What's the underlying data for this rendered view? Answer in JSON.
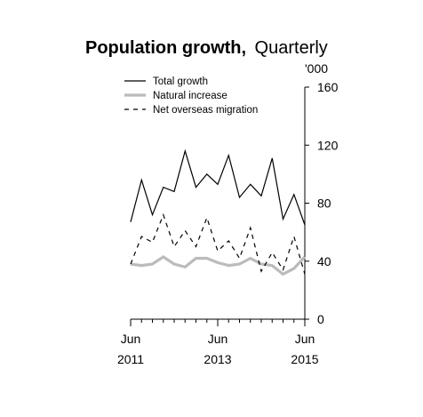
{
  "chart_data": {
    "type": "line",
    "title": "Population growth,",
    "subtitle": "Quarterly",
    "ylabel": "'000",
    "ylim": [
      0,
      160
    ],
    "yticks": [
      0,
      40,
      80,
      120,
      160
    ],
    "xticks": [
      {
        "month": "Jun",
        "year": "2011",
        "index": 0
      },
      {
        "month": "Jun",
        "year": "2013",
        "index": 8
      },
      {
        "month": "Jun",
        "year": "2015",
        "index": 16
      }
    ],
    "legend_position": "top-left",
    "grid": false,
    "x": [
      "Jun 2011",
      "Sep 2011",
      "Dec 2011",
      "Mar 2012",
      "Jun 2012",
      "Sep 2012",
      "Dec 2012",
      "Mar 2013",
      "Jun 2013",
      "Sep 2013",
      "Dec 2013",
      "Mar 2014",
      "Jun 2014",
      "Sep 2014",
      "Dec 2014",
      "Mar 2015",
      "Jun 2015"
    ],
    "series": [
      {
        "name": "Total growth",
        "style": "solid",
        "color": "#000000",
        "values": [
          67,
          96,
          72,
          91,
          88,
          116,
          91,
          100,
          93,
          113,
          84,
          93,
          85,
          111,
          69,
          86,
          65
        ]
      },
      {
        "name": "Natural increase",
        "style": "solid-thick",
        "color": "#bbbbbb",
        "values": [
          38,
          37,
          38,
          43,
          38,
          36,
          42,
          42,
          39,
          37,
          38,
          42,
          38,
          37,
          31,
          35,
          43
        ]
      },
      {
        "name": "Net overseas migration",
        "style": "dashed",
        "color": "#000000",
        "values": [
          38,
          57,
          53,
          72,
          50,
          61,
          50,
          70,
          47,
          54,
          42,
          63,
          33,
          46,
          34,
          57,
          31
        ]
      }
    ]
  }
}
